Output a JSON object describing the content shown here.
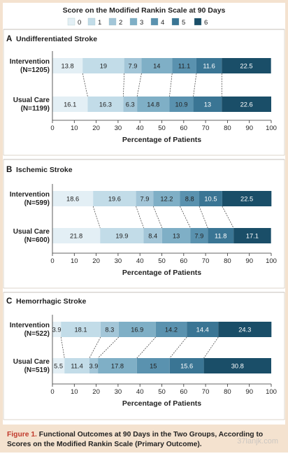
{
  "legend": {
    "title": "Score on the Modified Rankin Scale at 90 Days",
    "labels": [
      "0",
      "1",
      "2",
      "3",
      "4",
      "5",
      "6"
    ]
  },
  "colors": [
    "#e3eff5",
    "#c2dce8",
    "#a3c6d8",
    "#7fafc6",
    "#5a92af",
    "#3a7594",
    "#1a4e68"
  ],
  "caption": {
    "label": "Figure 1.",
    "text": "Functional Outcomes at 90 Days in the Two Groups, According to Scores on the Modified Rankin Scale (Primary Outcome)."
  },
  "watermark": "37lanjk.com",
  "chart_data": [
    {
      "type": "bar",
      "panel": "A",
      "title": "Undifferentiated Stroke",
      "xlabel": "Percentage of Patients",
      "xlim": [
        0,
        100
      ],
      "xticks": [
        0,
        10,
        20,
        30,
        40,
        50,
        60,
        70,
        80,
        90,
        100
      ],
      "categories": [
        "0",
        "1",
        "2",
        "3",
        "4",
        "5",
        "6"
      ],
      "groups": [
        {
          "name": "Intervention",
          "n": "(N=1205)",
          "values": [
            13.8,
            19.0,
            7.9,
            14.0,
            11.1,
            11.6,
            22.5
          ]
        },
        {
          "name": "Usual Care",
          "n": "(N=1199)",
          "values": [
            16.1,
            16.3,
            6.3,
            14.8,
            10.9,
            13.0,
            22.6
          ]
        }
      ]
    },
    {
      "type": "bar",
      "panel": "B",
      "title": "Ischemic Stroke",
      "xlabel": "Percentage of Patients",
      "xlim": [
        0,
        100
      ],
      "xticks": [
        0,
        10,
        20,
        30,
        40,
        50,
        60,
        70,
        80,
        90,
        100
      ],
      "categories": [
        "0",
        "1",
        "2",
        "3",
        "4",
        "5",
        "6"
      ],
      "groups": [
        {
          "name": "Intervention",
          "n": "(N=599)",
          "values": [
            18.6,
            19.6,
            7.9,
            12.2,
            8.8,
            10.5,
            22.5
          ]
        },
        {
          "name": "Usual Care",
          "n": "(N=600)",
          "values": [
            21.8,
            19.9,
            8.4,
            13.0,
            7.9,
            11.8,
            17.1
          ]
        }
      ]
    },
    {
      "type": "bar",
      "panel": "C",
      "title": "Hemorrhagic Stroke",
      "xlabel": "Percentage of Patients",
      "xlim": [
        0,
        100
      ],
      "xticks": [
        0,
        10,
        20,
        30,
        40,
        50,
        60,
        70,
        80,
        90,
        100
      ],
      "categories": [
        "0",
        "1",
        "2",
        "3",
        "4",
        "5",
        "6"
      ],
      "groups": [
        {
          "name": "Intervention",
          "n": "(N=522)",
          "values": [
            3.9,
            18.1,
            8.3,
            16.9,
            14.2,
            14.4,
            24.3
          ]
        },
        {
          "name": "Usual Care",
          "n": "(N=519)",
          "values": [
            5.5,
            11.4,
            3.9,
            17.8,
            15.0,
            15.6,
            30.8
          ]
        }
      ]
    }
  ]
}
